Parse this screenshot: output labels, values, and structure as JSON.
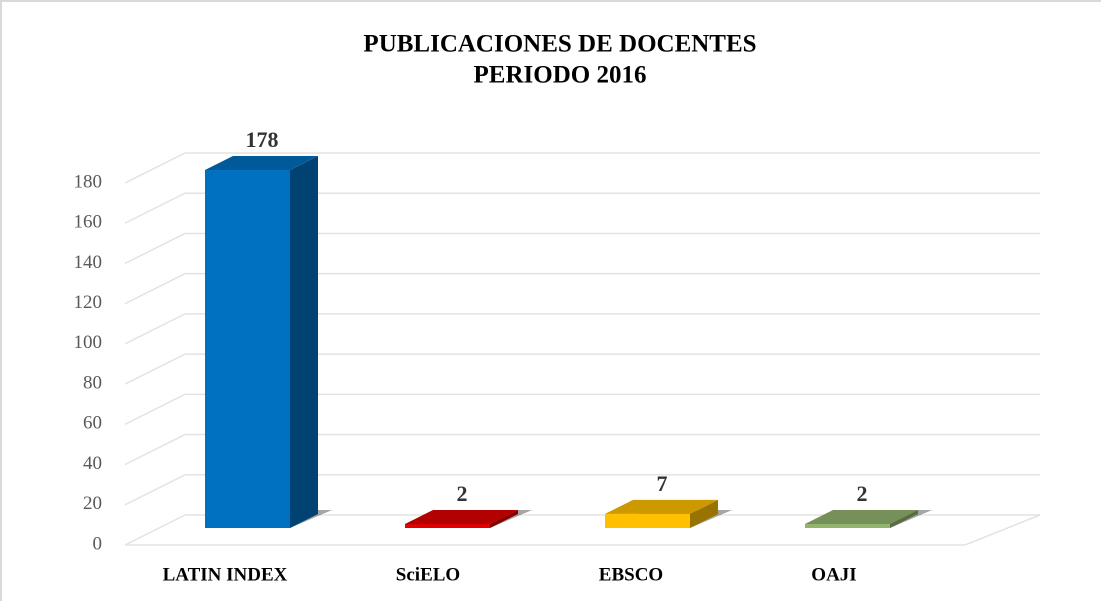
{
  "chart_data": {
    "type": "bar3d",
    "title": "PUBLICACIONES DE DOCENTES",
    "subtitle": "PERIODO 2016",
    "categories": [
      "LATIN INDEX",
      "SciELO",
      "EBSCO",
      "OAJI"
    ],
    "values": [
      178,
      2,
      7,
      2
    ],
    "colors": [
      "#0070c0",
      "#e00000",
      "#ffc000",
      "#92b46e"
    ],
    "ylim": [
      0,
      180
    ],
    "yticks": [
      0,
      20,
      40,
      60,
      80,
      100,
      120,
      140,
      160,
      180
    ],
    "grid": true
  }
}
